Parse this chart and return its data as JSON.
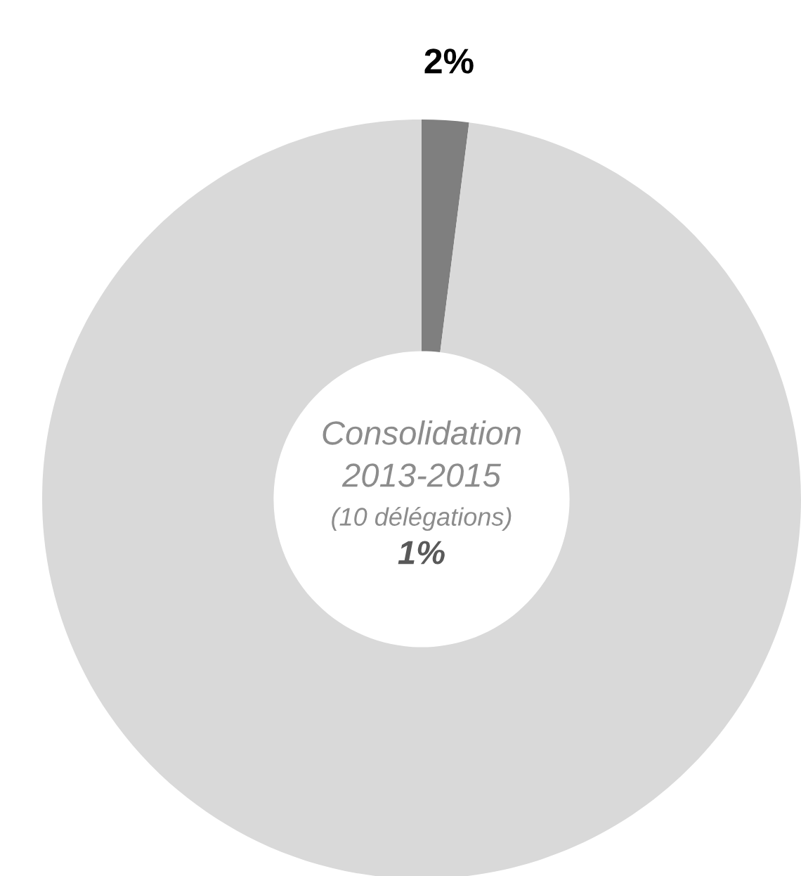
{
  "chart_data": {
    "type": "donut",
    "categories": [
      null,
      null
    ],
    "values": [
      2,
      98
    ],
    "colors": [
      "#7f7f7f",
      "#d9d9d9"
    ],
    "value_labels": [
      "2%",
      null
    ],
    "annotations": [
      "Consolidation",
      "2013-2015",
      "(10 délégations)",
      "1%"
    ],
    "legend": false
  }
}
